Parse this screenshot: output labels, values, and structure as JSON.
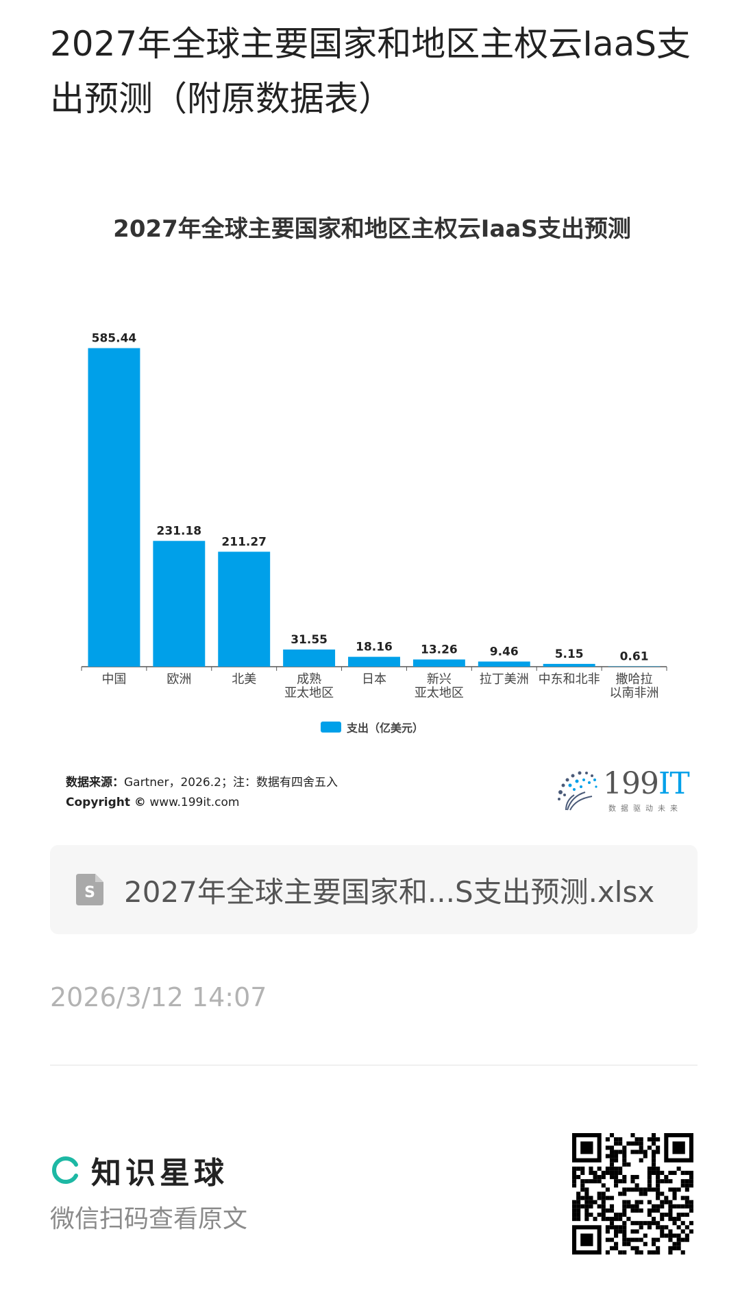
{
  "page": {
    "title": "2027年全球主要国家和地区主权云IaaS支出预测（附原数据表）"
  },
  "chart_data": {
    "type": "bar",
    "title": "2027年全球主要国家和地区主权云IaaS支出预测",
    "categories": [
      "中国",
      "欧洲",
      "北美",
      "成熟\n亚太地区",
      "日本",
      "新兴\n亚太地区",
      "拉丁美洲",
      "中东和北非",
      "撒哈拉\n以南非洲"
    ],
    "series": [
      {
        "name": "支出（亿美元）",
        "values": [
          585.44,
          231.18,
          211.27,
          31.55,
          18.16,
          13.26,
          9.46,
          5.15,
          0.61
        ]
      }
    ],
    "value_labels": [
      "585.44",
      "231.18",
      "211.27",
      "31.55",
      "18.16",
      "13.26",
      "9.46",
      "5.15",
      "0.61"
    ],
    "ylim": [
      0,
      600
    ],
    "grid": false,
    "legend": "bottom-center",
    "color": "#00a0e9"
  },
  "source": {
    "label": "数据来源：",
    "text": "Gartner，2026.2；注：数据有四舍五入",
    "copyright_label": "Copyright ©",
    "site": "www.199it.com"
  },
  "logo": {
    "number": "199",
    "suffix": "IT",
    "tagline": "数据驱动未来"
  },
  "file": {
    "icon": "spreadsheet-icon",
    "name": "2027年全球主要国家和...S支出预测.xlsx"
  },
  "timestamp": "2026/3/12 14:07",
  "brand": {
    "name": "知识星球",
    "subtitle": "微信扫码查看原文",
    "accent": "#1db8a4"
  }
}
